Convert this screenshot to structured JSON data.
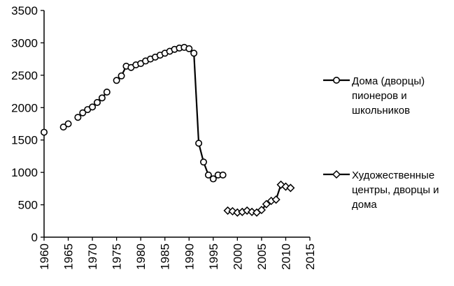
{
  "chart_data": {
    "type": "line",
    "title": "",
    "xlabel": "",
    "ylabel": "",
    "xlim": [
      1960,
      2015
    ],
    "ylim": [
      0,
      3500
    ],
    "x_ticks": [
      1960,
      1965,
      1970,
      1975,
      1980,
      1985,
      1990,
      1995,
      2000,
      2005,
      2010,
      2015
    ],
    "y_ticks": [
      0,
      500,
      1000,
      1500,
      2000,
      2500,
      3000,
      3500
    ],
    "grid": false,
    "legend_position": "right",
    "series": [
      {
        "name": "Дома (дворцы) пионеров и школьников",
        "marker": "circle",
        "legend_lines": [
          "Дома (дворцы)",
          "пионеров и",
          "школьников"
        ],
        "segments": [
          [
            [
              1960,
              1620
            ]
          ],
          [
            [
              1964,
              1700
            ],
            [
              1965,
              1750
            ]
          ],
          [
            [
              1967,
              1850
            ],
            [
              1968,
              1920
            ],
            [
              1969,
              1970
            ],
            [
              1970,
              2010
            ],
            [
              1971,
              2080
            ],
            [
              1972,
              2150
            ],
            [
              1973,
              2240
            ]
          ],
          [
            [
              1975,
              2420
            ],
            [
              1976,
              2490
            ],
            [
              1977,
              2640
            ],
            [
              1978,
              2620
            ],
            [
              1979,
              2660
            ],
            [
              1980,
              2680
            ],
            [
              1981,
              2720
            ],
            [
              1982,
              2750
            ],
            [
              1983,
              2780
            ],
            [
              1984,
              2810
            ],
            [
              1985,
              2840
            ],
            [
              1986,
              2870
            ],
            [
              1987,
              2900
            ],
            [
              1988,
              2920
            ],
            [
              1989,
              2930
            ],
            [
              1990,
              2910
            ],
            [
              1991,
              2840
            ],
            [
              1992,
              1450
            ],
            [
              1993,
              1160
            ],
            [
              1994,
              960
            ],
            [
              1995,
              900
            ],
            [
              1996,
              960
            ],
            [
              1997,
              960
            ]
          ]
        ]
      },
      {
        "name": "Художественные центры, дворцы и дома",
        "marker": "diamond",
        "legend_lines": [
          "Художественные",
          "центры, дворцы и",
          "дома"
        ],
        "segments": [
          [
            [
              1998,
              410
            ],
            [
              1999,
              400
            ],
            [
              2000,
              380
            ],
            [
              2001,
              390
            ],
            [
              2002,
              410
            ],
            [
              2003,
              390
            ],
            [
              2004,
              380
            ],
            [
              2005,
              420
            ],
            [
              2006,
              510
            ],
            [
              2007,
              560
            ],
            [
              2008,
              580
            ],
            [
              2009,
              810
            ],
            [
              2010,
              780
            ],
            [
              2011,
              760
            ]
          ]
        ]
      }
    ]
  }
}
